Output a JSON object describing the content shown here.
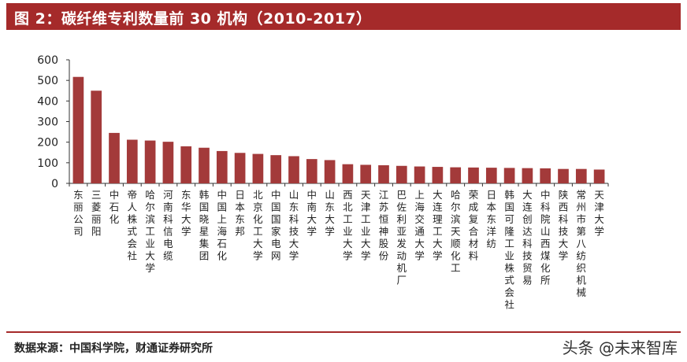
{
  "title": "图 2：碳纤维专利数量前 30 机构（2010-2017）",
  "source": "数据来源：中国科学院，财通证券研究所",
  "watermark": "头条 @未来智库",
  "colors": {
    "bar": "#a33a3a",
    "title_bg": "#a52a2a"
  },
  "chart_data": {
    "type": "bar",
    "title": "图 2：碳纤维专利数量前 30 机构（2010-2017）",
    "xlabel": "",
    "ylabel": "",
    "ylim": [
      0,
      600
    ],
    "yticks": [
      0,
      100,
      200,
      300,
      400,
      500,
      600
    ],
    "grid": false,
    "categories": [
      "东丽公司",
      "三菱丽阳",
      "中石化",
      "帝人株式会社",
      "哈尔滨工业大学",
      "河南科信电缆",
      "东华大学",
      "韩国晓星集团",
      "中国上海石化",
      "日本东邦",
      "北京化工大学",
      "中国国家电网",
      "山东科技大学",
      "中南大学",
      "山东大学",
      "西北工业大学",
      "天津工业大学",
      "江苏恒神股份",
      "巴佐利亚发动机厂",
      "上海交通大学",
      "大连理工大学",
      "哈尔滨天顺化工",
      "荣成复合材料",
      "日本东洋纺",
      "韩国可隆工业株式会社",
      "大连创达科技贸易",
      "中科院山西煤化所",
      "陕西科技大学",
      "常州市第八纺织机械",
      "天津大学"
    ],
    "values": [
      517,
      450,
      245,
      212,
      208,
      202,
      180,
      173,
      157,
      148,
      143,
      137,
      132,
      118,
      113,
      93,
      90,
      88,
      85,
      82,
      80,
      78,
      77,
      76,
      75,
      74,
      73,
      70,
      70,
      67
    ]
  }
}
